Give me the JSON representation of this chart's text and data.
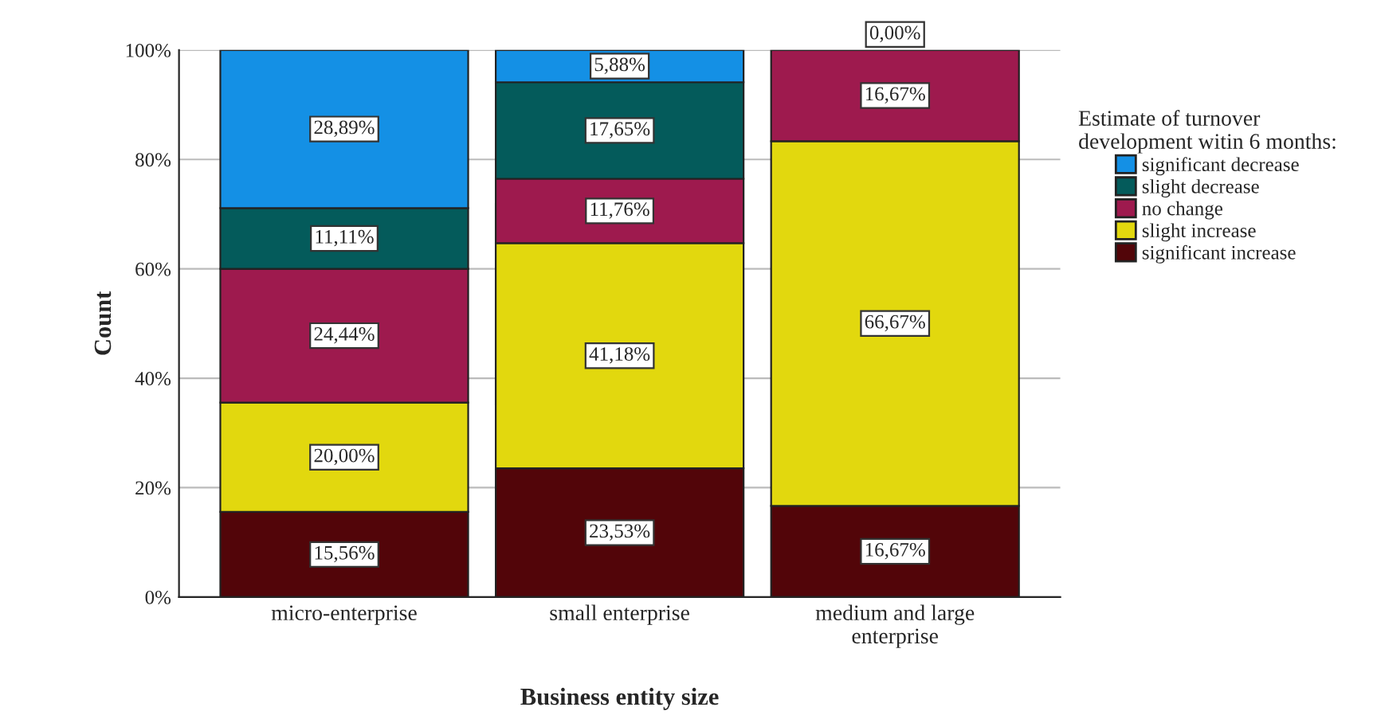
{
  "chart_data": {
    "type": "bar",
    "stacked": true,
    "xlabel": "Business entity size",
    "ylabel": "Count",
    "legend_title": "Estimate of turnover\ndevelopment witin 6 months:",
    "legend": "right",
    "grid": "y",
    "categories": [
      "micro-enterprise",
      "small enterprise",
      "medium and large\nenterprise"
    ],
    "ylim": [
      0,
      100
    ],
    "yticks": [
      {
        "value": 0,
        "label": "0%"
      },
      {
        "value": 20,
        "label": "20%"
      },
      {
        "value": 40,
        "label": "40%"
      },
      {
        "value": 60,
        "label": "60%"
      },
      {
        "value": 80,
        "label": "80%"
      },
      {
        "value": 100,
        "label": "100%"
      }
    ],
    "series": [
      {
        "name": "significant increase",
        "color": "#520509",
        "values": [
          15.56,
          23.53,
          16.67
        ],
        "value_labels": [
          "15,56%",
          "23,53%",
          "16,67%"
        ]
      },
      {
        "name": "slight increase",
        "color": "#e2d80e",
        "values": [
          20.0,
          41.18,
          66.67
        ],
        "value_labels": [
          "20,00%",
          "41,18%",
          "66,67%"
        ]
      },
      {
        "name": "no change",
        "color": "#9e1a4e",
        "values": [
          24.44,
          11.76,
          16.67
        ],
        "value_labels": [
          "24,44%",
          "11,76%",
          "16,67%"
        ]
      },
      {
        "name": "slight decrease",
        "color": "#045b5b",
        "values": [
          11.11,
          17.65,
          0
        ],
        "value_labels": [
          "11,11%",
          "17,65%",
          null
        ]
      },
      {
        "name": "significant decrease",
        "color": "#1490e5",
        "values": [
          28.89,
          5.88,
          0.0
        ],
        "value_labels": [
          "28,89%",
          "5,88%",
          "0,00%"
        ]
      }
    ]
  }
}
